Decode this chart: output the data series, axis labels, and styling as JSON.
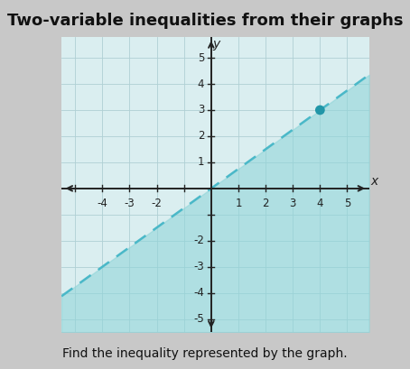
{
  "title": "Two-variable inequalities from their graphs",
  "subtitle": "Find the inequality represented by the graph.",
  "xlim": [
    -5.5,
    5.8
  ],
  "ylim": [
    -5.5,
    5.8
  ],
  "line_slope": 0.75,
  "line_intercept": 0,
  "line_color": "#4ab8c8",
  "line_width": 1.8,
  "shade_color": "#8dd4d8",
  "shade_alpha": 0.55,
  "dot_x": 4,
  "dot_y": 3,
  "dot_color": "#2196a8",
  "dot_size": 60,
  "grid_color": "#b0d0d4",
  "grid_linewidth": 0.6,
  "plot_bg_color": "#daeef0",
  "outer_bg_color": "#c8c8c8",
  "axis_color": "#222222",
  "title_fontsize": 13,
  "subtitle_fontsize": 10,
  "tick_fontsize": 8.5,
  "label_fontsize": 10
}
